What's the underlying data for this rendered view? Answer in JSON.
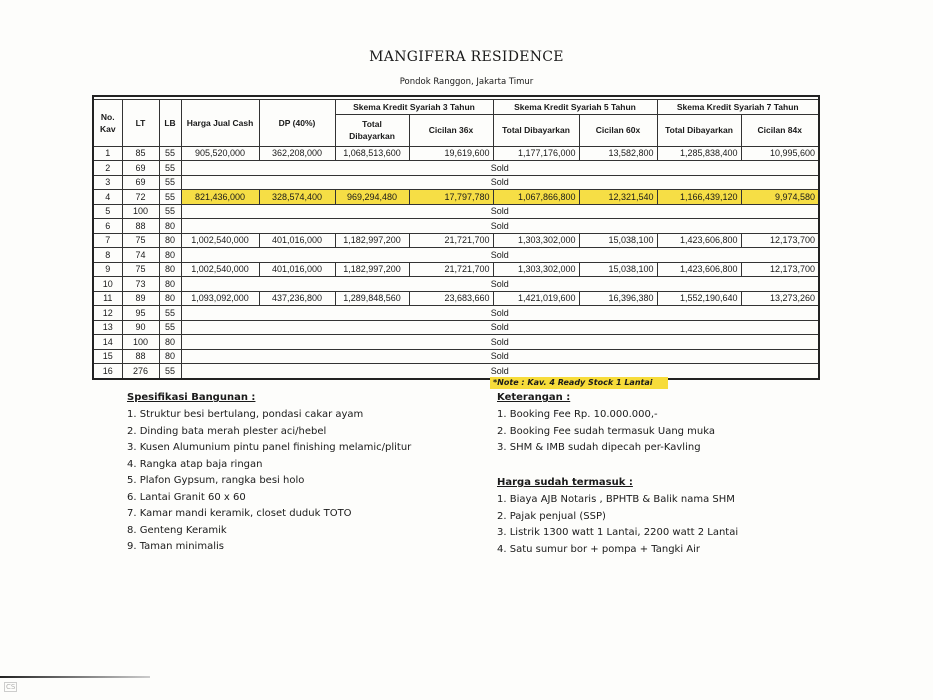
{
  "title": "MANGIFERA RESIDENCE",
  "subtitle": "Pondok Ranggon, Jakarta Timur",
  "table": {
    "headers": {
      "no": "No. Kav",
      "lt": "LT",
      "lb": "LB",
      "harga": "Harga Jual Cash",
      "dp": "DP (40%)",
      "group3": "Skema Kredit Syariah 3 Tahun",
      "group5": "Skema Kredit Syariah 5 Tahun",
      "group7": "Skema Kredit Syariah 7 Tahun",
      "total3": "Total Dibayarkan",
      "cicilan36": "Cicilan 36x",
      "total5": "Total Dibayarkan",
      "cicilan60": "Cicilan 60x",
      "total7": "Total Dibayarkan",
      "cicilan84": "Cicilan 84x"
    },
    "sold_label": "Sold",
    "highlight_color": "#f6de45",
    "rows": [
      {
        "no": "1",
        "lt": "85",
        "lb": "55",
        "values": [
          "905,520,000",
          "362,208,000",
          "1,068,513,600",
          "19,619,600",
          "1,177,176,000",
          "13,582,800",
          "1,285,838,400",
          "10,995,600"
        ]
      },
      {
        "no": "2",
        "lt": "69",
        "lb": "55",
        "sold": true
      },
      {
        "no": "3",
        "lt": "69",
        "lb": "55",
        "sold": true
      },
      {
        "no": "4",
        "lt": "72",
        "lb": "55",
        "highlight": true,
        "values": [
          "821,436,000",
          "328,574,400",
          "969,294,480",
          "17,797,780",
          "1,067,866,800",
          "12,321,540",
          "1,166,439,120",
          "9,974,580"
        ]
      },
      {
        "no": "5",
        "lt": "100",
        "lb": "55",
        "sold": true
      },
      {
        "no": "6",
        "lt": "88",
        "lb": "80",
        "sold": true
      },
      {
        "no": "7",
        "lt": "75",
        "lb": "80",
        "values": [
          "1,002,540,000",
          "401,016,000",
          "1,182,997,200",
          "21,721,700",
          "1,303,302,000",
          "15,038,100",
          "1,423,606,800",
          "12,173,700"
        ]
      },
      {
        "no": "8",
        "lt": "74",
        "lb": "80",
        "sold": true
      },
      {
        "no": "9",
        "lt": "75",
        "lb": "80",
        "values": [
          "1,002,540,000",
          "401,016,000",
          "1,182,997,200",
          "21,721,700",
          "1,303,302,000",
          "15,038,100",
          "1,423,606,800",
          "12,173,700"
        ]
      },
      {
        "no": "10",
        "lt": "73",
        "lb": "80",
        "sold": true
      },
      {
        "no": "11",
        "lt": "89",
        "lb": "80",
        "values": [
          "1,093,092,000",
          "437,236,800",
          "1,289,848,560",
          "23,683,660",
          "1,421,019,600",
          "16,396,380",
          "1,552,190,640",
          "13,273,260"
        ]
      },
      {
        "no": "12",
        "lt": "95",
        "lb": "55",
        "sold": true
      },
      {
        "no": "13",
        "lt": "90",
        "lb": "55",
        "sold": true
      },
      {
        "no": "14",
        "lt": "100",
        "lb": "80",
        "sold": true
      },
      {
        "no": "15",
        "lt": "88",
        "lb": "80",
        "sold": true
      },
      {
        "no": "16",
        "lt": "276",
        "lb": "55",
        "sold": true
      }
    ]
  },
  "note": "*Note : Kav. 4 Ready Stock 1 Lantai",
  "spesifikasi": {
    "heading": "Spesifikasi Bangunan :",
    "items": [
      "1. Struktur besi bertulang, pondasi cakar ayam",
      "2. Dinding bata merah plester aci/hebel",
      "3. Kusen Alumunium pintu panel finishing melamic/plitur",
      "4. Rangka atap baja ringan",
      "5. Plafon Gypsum, rangka besi holo",
      "6. Lantai Granit  60 x 60",
      "7. Kamar mandi keramik, closet duduk  TOTO",
      "8. Genteng Keramik",
      "9. Taman minimalis"
    ]
  },
  "keterangan": {
    "heading": "Keterangan :",
    "items": [
      "1. Booking Fee Rp. 10.000.000,-",
      "2. Booking Fee sudah termasuk Uang muka",
      "3. SHM & IMB sudah dipecah per-Kavling"
    ]
  },
  "harga_termasuk": {
    "heading": "Harga sudah termasuk :",
    "items": [
      "1. Biaya AJB Notaris , BPHTB & Balik nama SHM",
      "2. Pajak penjual (SSP)",
      "3. Listrik 1300 watt 1 Lantai, 2200 watt 2 Lantai",
      "4. Satu sumur bor + pompa + Tangki Air"
    ]
  },
  "watermark": {
    "logo": "CS"
  }
}
